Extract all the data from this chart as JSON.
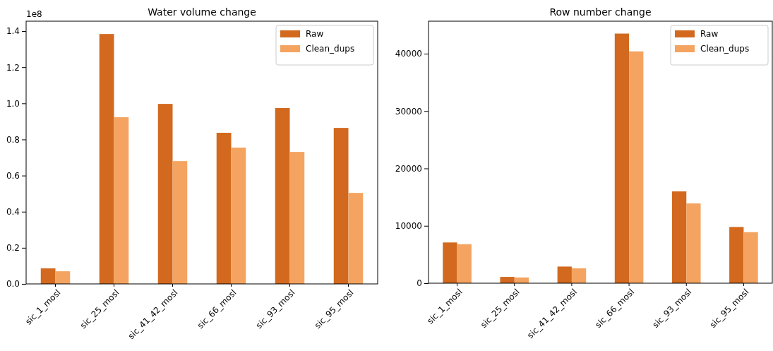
{
  "chart_data": [
    {
      "type": "bar",
      "title": "Water volume change",
      "categories": [
        "sic_1_mosl",
        "sic_25_mosl",
        "sic_41_42_mosl",
        "sic_66_mosl",
        "sic_93_mosl",
        "sic_95_mosl"
      ],
      "series": [
        {
          "name": "Raw",
          "color": "#d2691e",
          "values": [
            0.086,
            1.384,
            0.997,
            0.837,
            0.974,
            0.864
          ]
        },
        {
          "name": "Clean_dups",
          "color": "#f4a460",
          "values": [
            0.07,
            0.923,
            0.68,
            0.755,
            0.731,
            0.504
          ]
        }
      ],
      "ylim": [
        0,
        1.455
      ],
      "yticks": [
        {
          "value": 0,
          "label": "0.0"
        },
        {
          "value": 0.2,
          "label": "0.2"
        },
        {
          "value": 0.4,
          "label": "0.4"
        },
        {
          "value": 0.6,
          "label": "0.6"
        },
        {
          "value": 0.8,
          "label": "0.8"
        },
        {
          "value": 1,
          "label": "1.0"
        },
        {
          "value": 1.2,
          "label": "1.2"
        },
        {
          "value": 1.4,
          "label": "1.4"
        }
      ],
      "annotations": [
        "1e8"
      ],
      "legend": "top right"
    },
    {
      "type": "bar",
      "title": "Row number change",
      "categories": [
        "sic_1_mosl",
        "sic_25_mosl",
        "sic_41_42_mosl",
        "sic_66_mosl",
        "sic_93_mosl",
        "sic_95_mosl"
      ],
      "series": [
        {
          "name": "Raw",
          "color": "#d2691e",
          "values": [
            7100,
            1100,
            2900,
            43500,
            16000,
            9800
          ]
        },
        {
          "name": "Clean_dups",
          "color": "#f4a460",
          "values": [
            6800,
            1000,
            2600,
            40400,
            13900,
            8900
          ]
        }
      ],
      "ylim": [
        0,
        45660
      ],
      "yticks": [
        0,
        10000,
        20000,
        30000,
        40000
      ],
      "legend": "top right"
    }
  ]
}
